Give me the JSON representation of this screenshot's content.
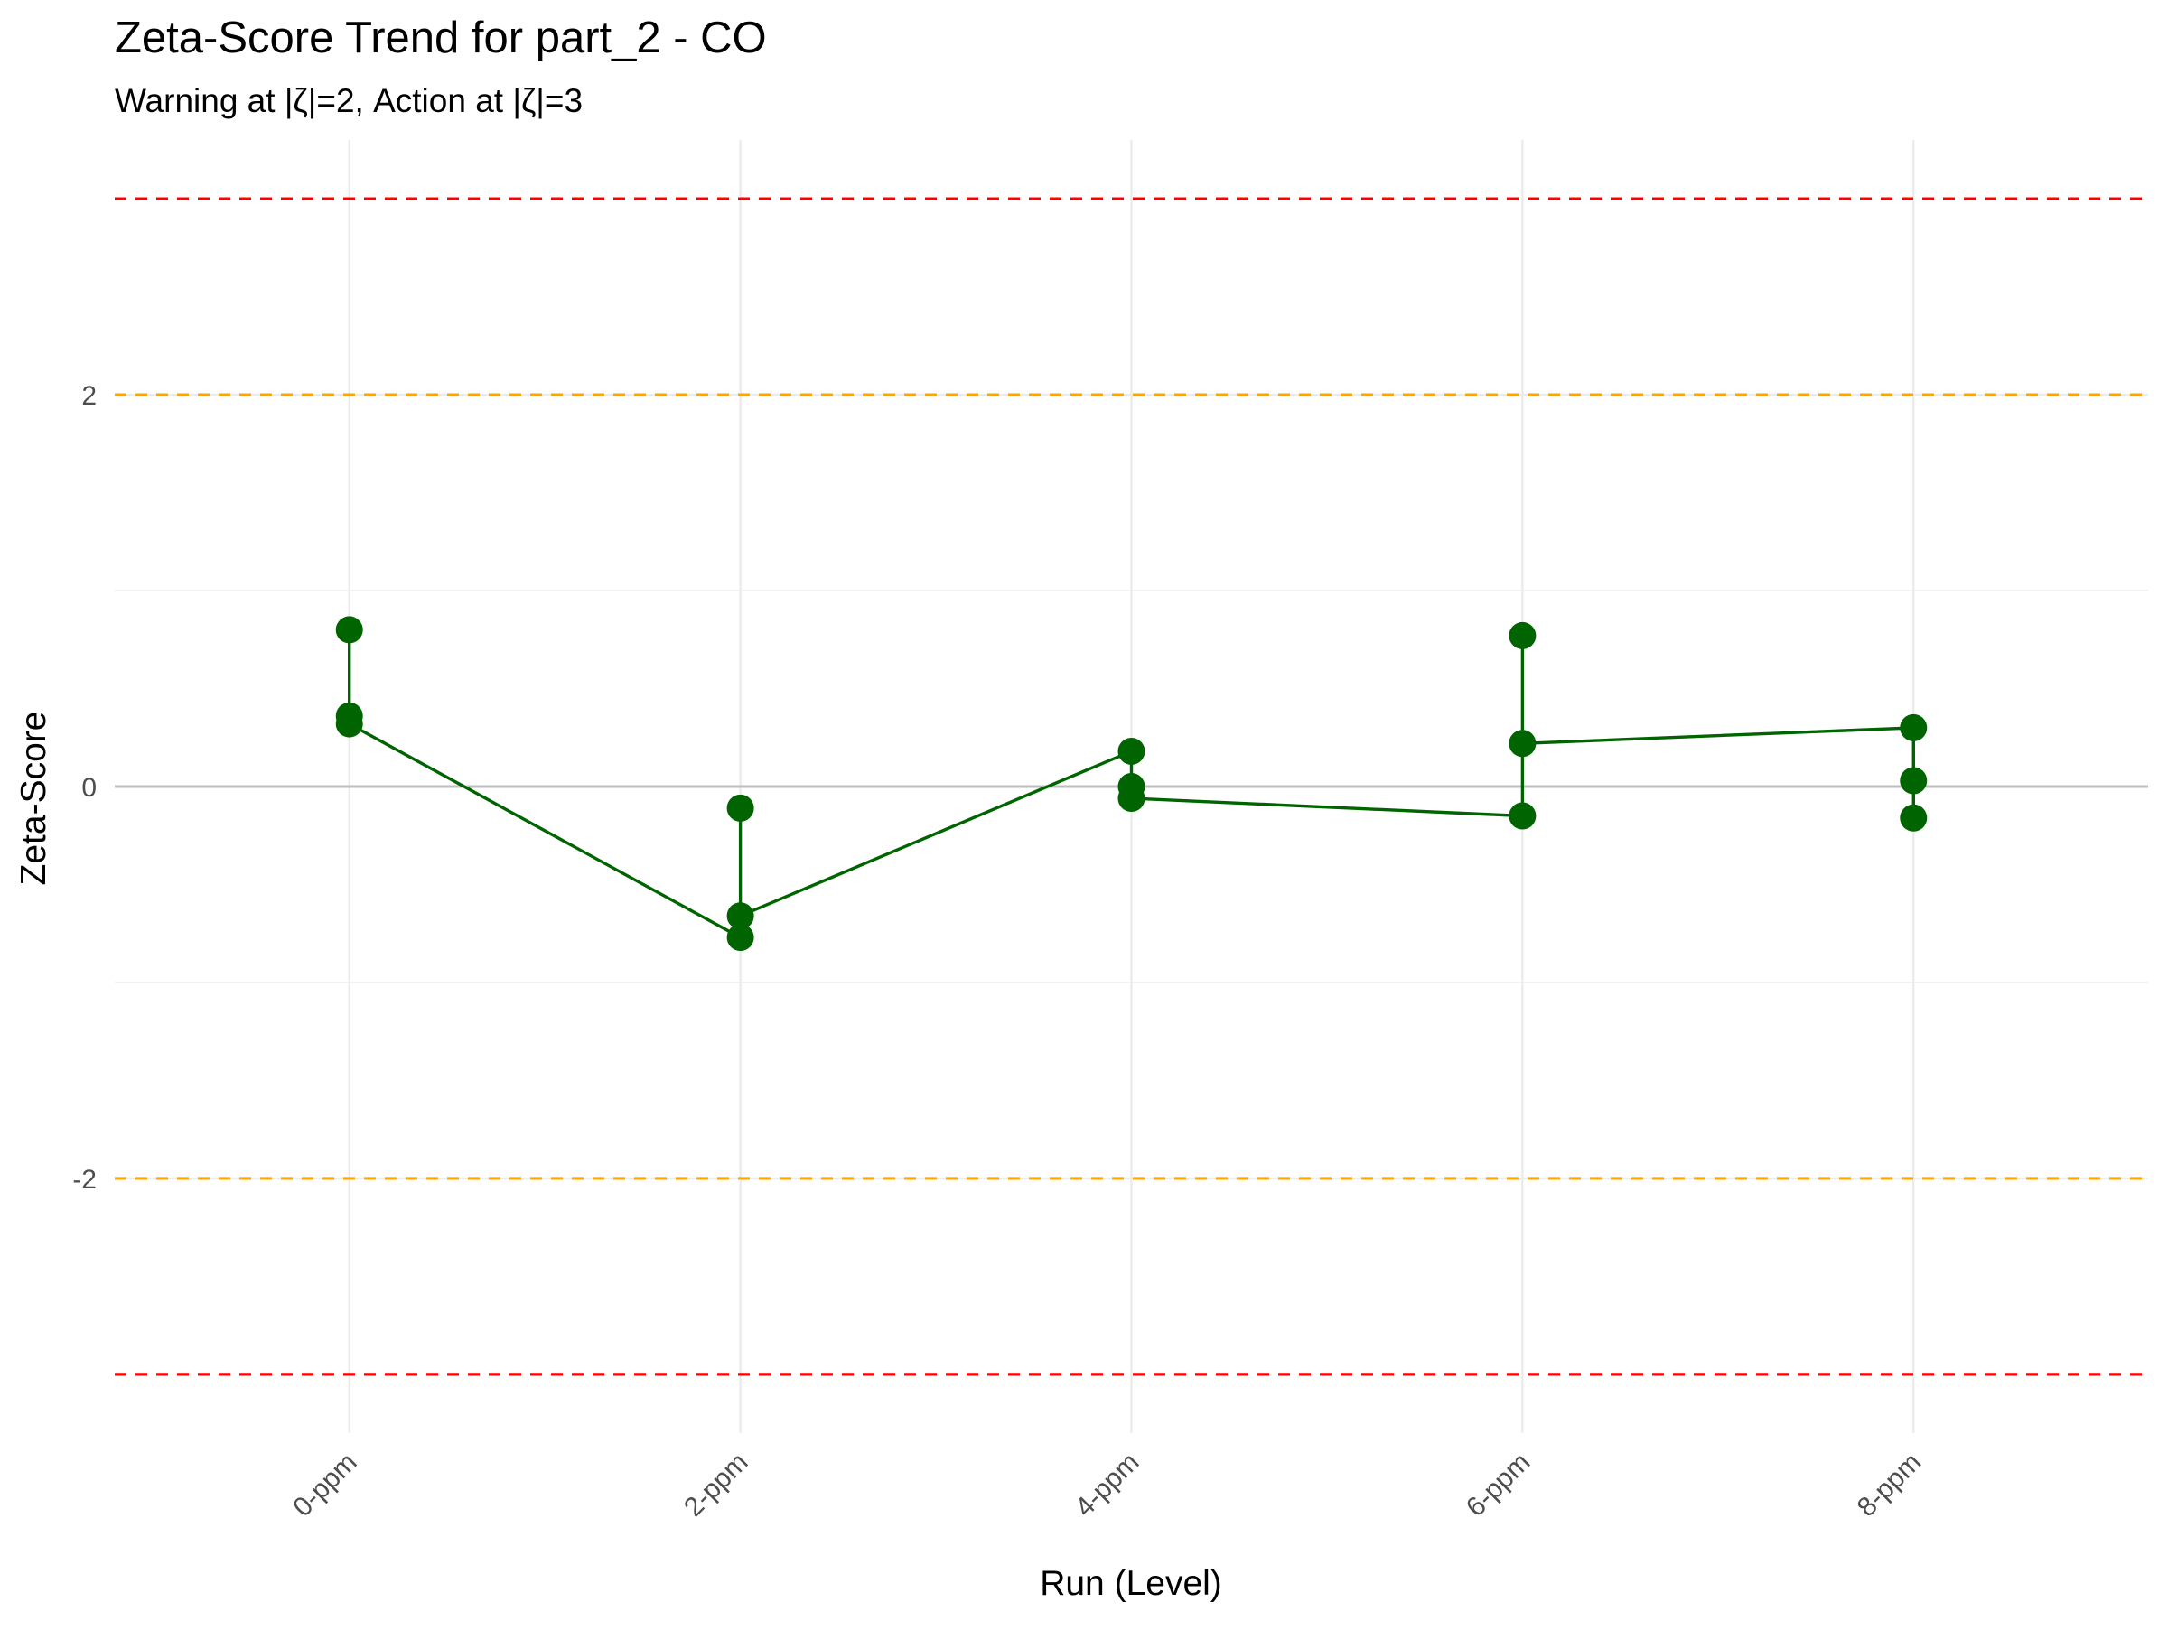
{
  "chart_data": {
    "type": "line",
    "title": "Zeta-Score Trend for part_2 - CO",
    "subtitle": "Warning at |ζ|=2, Action at |ζ|=3",
    "xlabel": "Run (Level)",
    "ylabel": "Zeta-Score",
    "categories": [
      "0-ppm",
      "2-ppm",
      "4-ppm",
      "6-ppm",
      "8-ppm"
    ],
    "ylim": [
      -3.3,
      3.3
    ],
    "yticks": [
      -2,
      0,
      2
    ],
    "ytick_labels": [
      "-2",
      "0",
      "2"
    ],
    "grid": true,
    "points": [
      {
        "x": "0-ppm",
        "y": 0.8
      },
      {
        "x": "0-ppm",
        "y": 0.36
      },
      {
        "x": "0-ppm",
        "y": 0.32
      },
      {
        "x": "2-ppm",
        "y": -0.11
      },
      {
        "x": "2-ppm",
        "y": -0.66
      },
      {
        "x": "2-ppm",
        "y": -0.77
      },
      {
        "x": "4-ppm",
        "y": 0.18
      },
      {
        "x": "4-ppm",
        "y": 0.0
      },
      {
        "x": "4-ppm",
        "y": -0.06
      },
      {
        "x": "6-ppm",
        "y": 0.77
      },
      {
        "x": "6-ppm",
        "y": 0.22
      },
      {
        "x": "6-ppm",
        "y": -0.15
      },
      {
        "x": "8-ppm",
        "y": 0.3
      },
      {
        "x": "8-ppm",
        "y": 0.03
      },
      {
        "x": "8-ppm",
        "y": -0.16
      }
    ],
    "line_path": [
      {
        "x": "0-ppm",
        "y": 0.8
      },
      {
        "x": "0-ppm",
        "y": 0.36
      },
      {
        "x": "0-ppm",
        "y": 0.32
      },
      {
        "x": "2-ppm",
        "y": -0.77
      },
      {
        "x": "2-ppm",
        "y": -0.66
      },
      {
        "x": "2-ppm",
        "y": -0.11
      },
      {
        "x": "2-ppm",
        "y": -0.66
      },
      {
        "x": "4-ppm",
        "y": 0.18
      },
      {
        "x": "4-ppm",
        "y": 0.0
      },
      {
        "x": "4-ppm",
        "y": -0.06
      },
      {
        "x": "6-ppm",
        "y": -0.15
      },
      {
        "x": "6-ppm",
        "y": 0.22
      },
      {
        "x": "6-ppm",
        "y": 0.77
      },
      {
        "x": "6-ppm",
        "y": 0.22
      },
      {
        "x": "8-ppm",
        "y": 0.3
      },
      {
        "x": "8-ppm",
        "y": 0.03
      },
      {
        "x": "8-ppm",
        "y": -0.16
      }
    ],
    "reference_lines": [
      {
        "kind": "action-upper",
        "y": 3,
        "color": "#ff0000",
        "style": "dashed"
      },
      {
        "kind": "warning-upper",
        "y": 2,
        "color": "#ffa500",
        "style": "dashed"
      },
      {
        "kind": "zero",
        "y": 0,
        "color": "#bebebe",
        "style": "solid"
      },
      {
        "kind": "warning-lower",
        "y": -2,
        "color": "#ffa500",
        "style": "dashed"
      },
      {
        "kind": "action-lower",
        "y": -3,
        "color": "#ff0000",
        "style": "dashed"
      }
    ],
    "colors": {
      "series": "#006400",
      "grid": "#ebebeb",
      "background": "#ffffff"
    }
  }
}
